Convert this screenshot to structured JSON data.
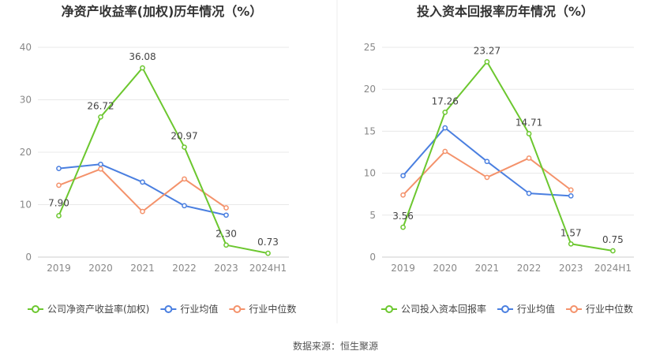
{
  "source_text": "数据来源：恒生聚源",
  "chart_data": [
    {
      "type": "line",
      "title": "净资产收益率(加权)历年情况（%）",
      "categories": [
        "2019",
        "2020",
        "2021",
        "2022",
        "2023",
        "2024H1"
      ],
      "ylim": [
        0,
        40
      ],
      "yticks": [
        0,
        10,
        20,
        30,
        40
      ],
      "grid": true,
      "legend_position": "bottom",
      "series": [
        {
          "name": "公司净资产收益率(加权)",
          "color": "#6cc72f",
          "values": [
            7.9,
            26.72,
            36.08,
            20.97,
            2.3,
            0.73
          ],
          "labels": [
            "7.90",
            "26.72",
            "36.08",
            "20.97",
            "2.30",
            "0.73"
          ],
          "label_below": [
            true,
            false,
            false,
            false,
            false,
            false
          ]
        },
        {
          "name": "行业均值",
          "color": "#4a7fe0",
          "values": [
            16.9,
            17.7,
            14.3,
            9.8,
            8.0,
            null
          ]
        },
        {
          "name": "行业中位数",
          "color": "#f4926b",
          "values": [
            13.7,
            16.8,
            8.7,
            14.9,
            9.4,
            null
          ]
        }
      ]
    },
    {
      "type": "line",
      "title": "投入资本回报率历年情况（%）",
      "categories": [
        "2019",
        "2020",
        "2021",
        "2022",
        "2023",
        "2024H1"
      ],
      "ylim": [
        0,
        25
      ],
      "yticks": [
        0,
        5,
        10,
        15,
        20,
        25
      ],
      "grid": true,
      "legend_position": "bottom",
      "series": [
        {
          "name": "公司投入资本回报率",
          "color": "#6cc72f",
          "values": [
            3.56,
            17.26,
            23.27,
            14.71,
            1.57,
            0.75
          ],
          "labels": [
            "3.56",
            "17.26",
            "23.27",
            "14.71",
            "1.57",
            "0.75"
          ],
          "label_below": [
            false,
            false,
            false,
            false,
            false,
            false
          ]
        },
        {
          "name": "行业均值",
          "color": "#4a7fe0",
          "values": [
            9.7,
            15.4,
            11.4,
            7.6,
            7.3,
            null
          ]
        },
        {
          "name": "行业中位数",
          "color": "#f4926b",
          "values": [
            7.4,
            12.6,
            9.5,
            11.8,
            8.0,
            null
          ]
        }
      ]
    }
  ]
}
